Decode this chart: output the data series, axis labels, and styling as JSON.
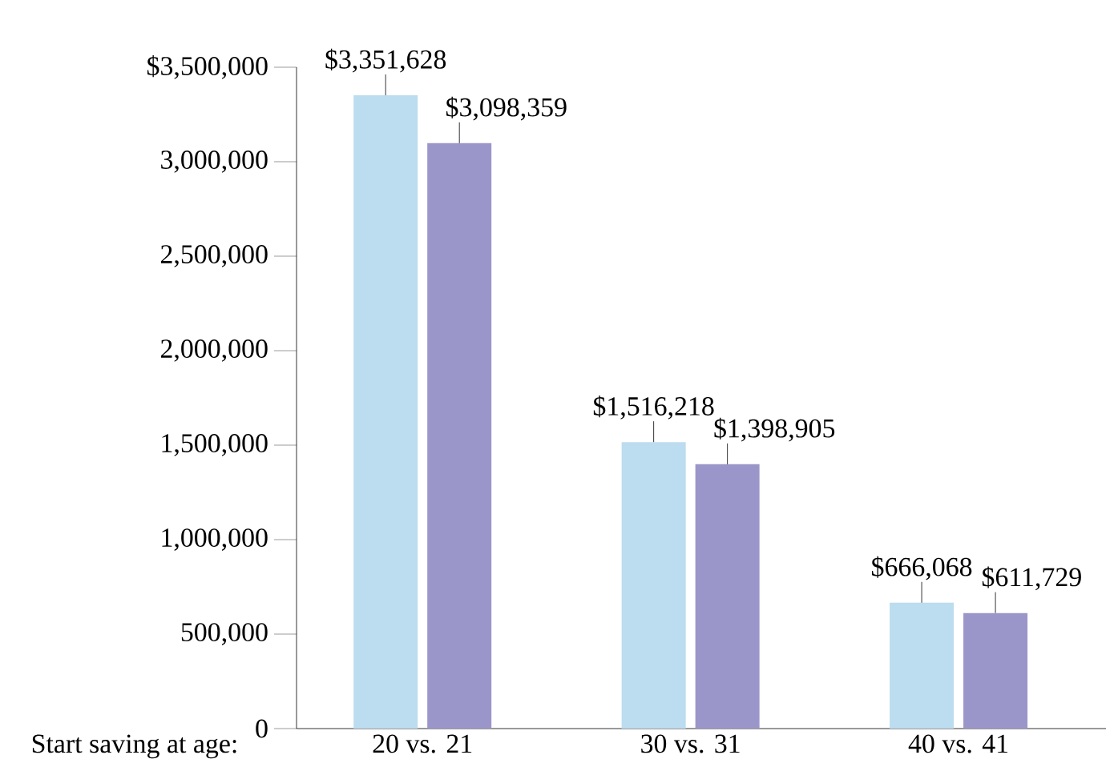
{
  "chart_data": {
    "type": "bar",
    "xlabel": "Start saving at age:",
    "categories": [
      "20 vs. 21",
      "30 vs. 31",
      "40 vs. 41"
    ],
    "series": [
      {
        "color": "#bcdcef",
        "values": [
          3351628,
          1516218,
          666068
        ],
        "value_labels": [
          "$3,351,628",
          "$1,516,218",
          "$666,068"
        ]
      },
      {
        "color": "#9b96c9",
        "values": [
          3098359,
          1398905,
          611729
        ],
        "value_labels": [
          "$3,098,359",
          "$1,398,905",
          "$611,729"
        ]
      }
    ],
    "ylim": [
      0,
      3500000
    ],
    "yticks": [
      0,
      {
        "value": 500000,
        "label": "500,000"
      },
      {
        "value": 1000000,
        "label": "1,000,000"
      },
      {
        "value": 1500000,
        "label": "1,500,000"
      },
      {
        "value": 2000000,
        "label": "2,000,000"
      },
      {
        "value": 2500000,
        "label": "2,500,000"
      },
      {
        "value": 3000000,
        "label": "3,000,000"
      },
      {
        "value": 3500000,
        "label": "$3,500,000"
      }
    ],
    "grid": false
  }
}
